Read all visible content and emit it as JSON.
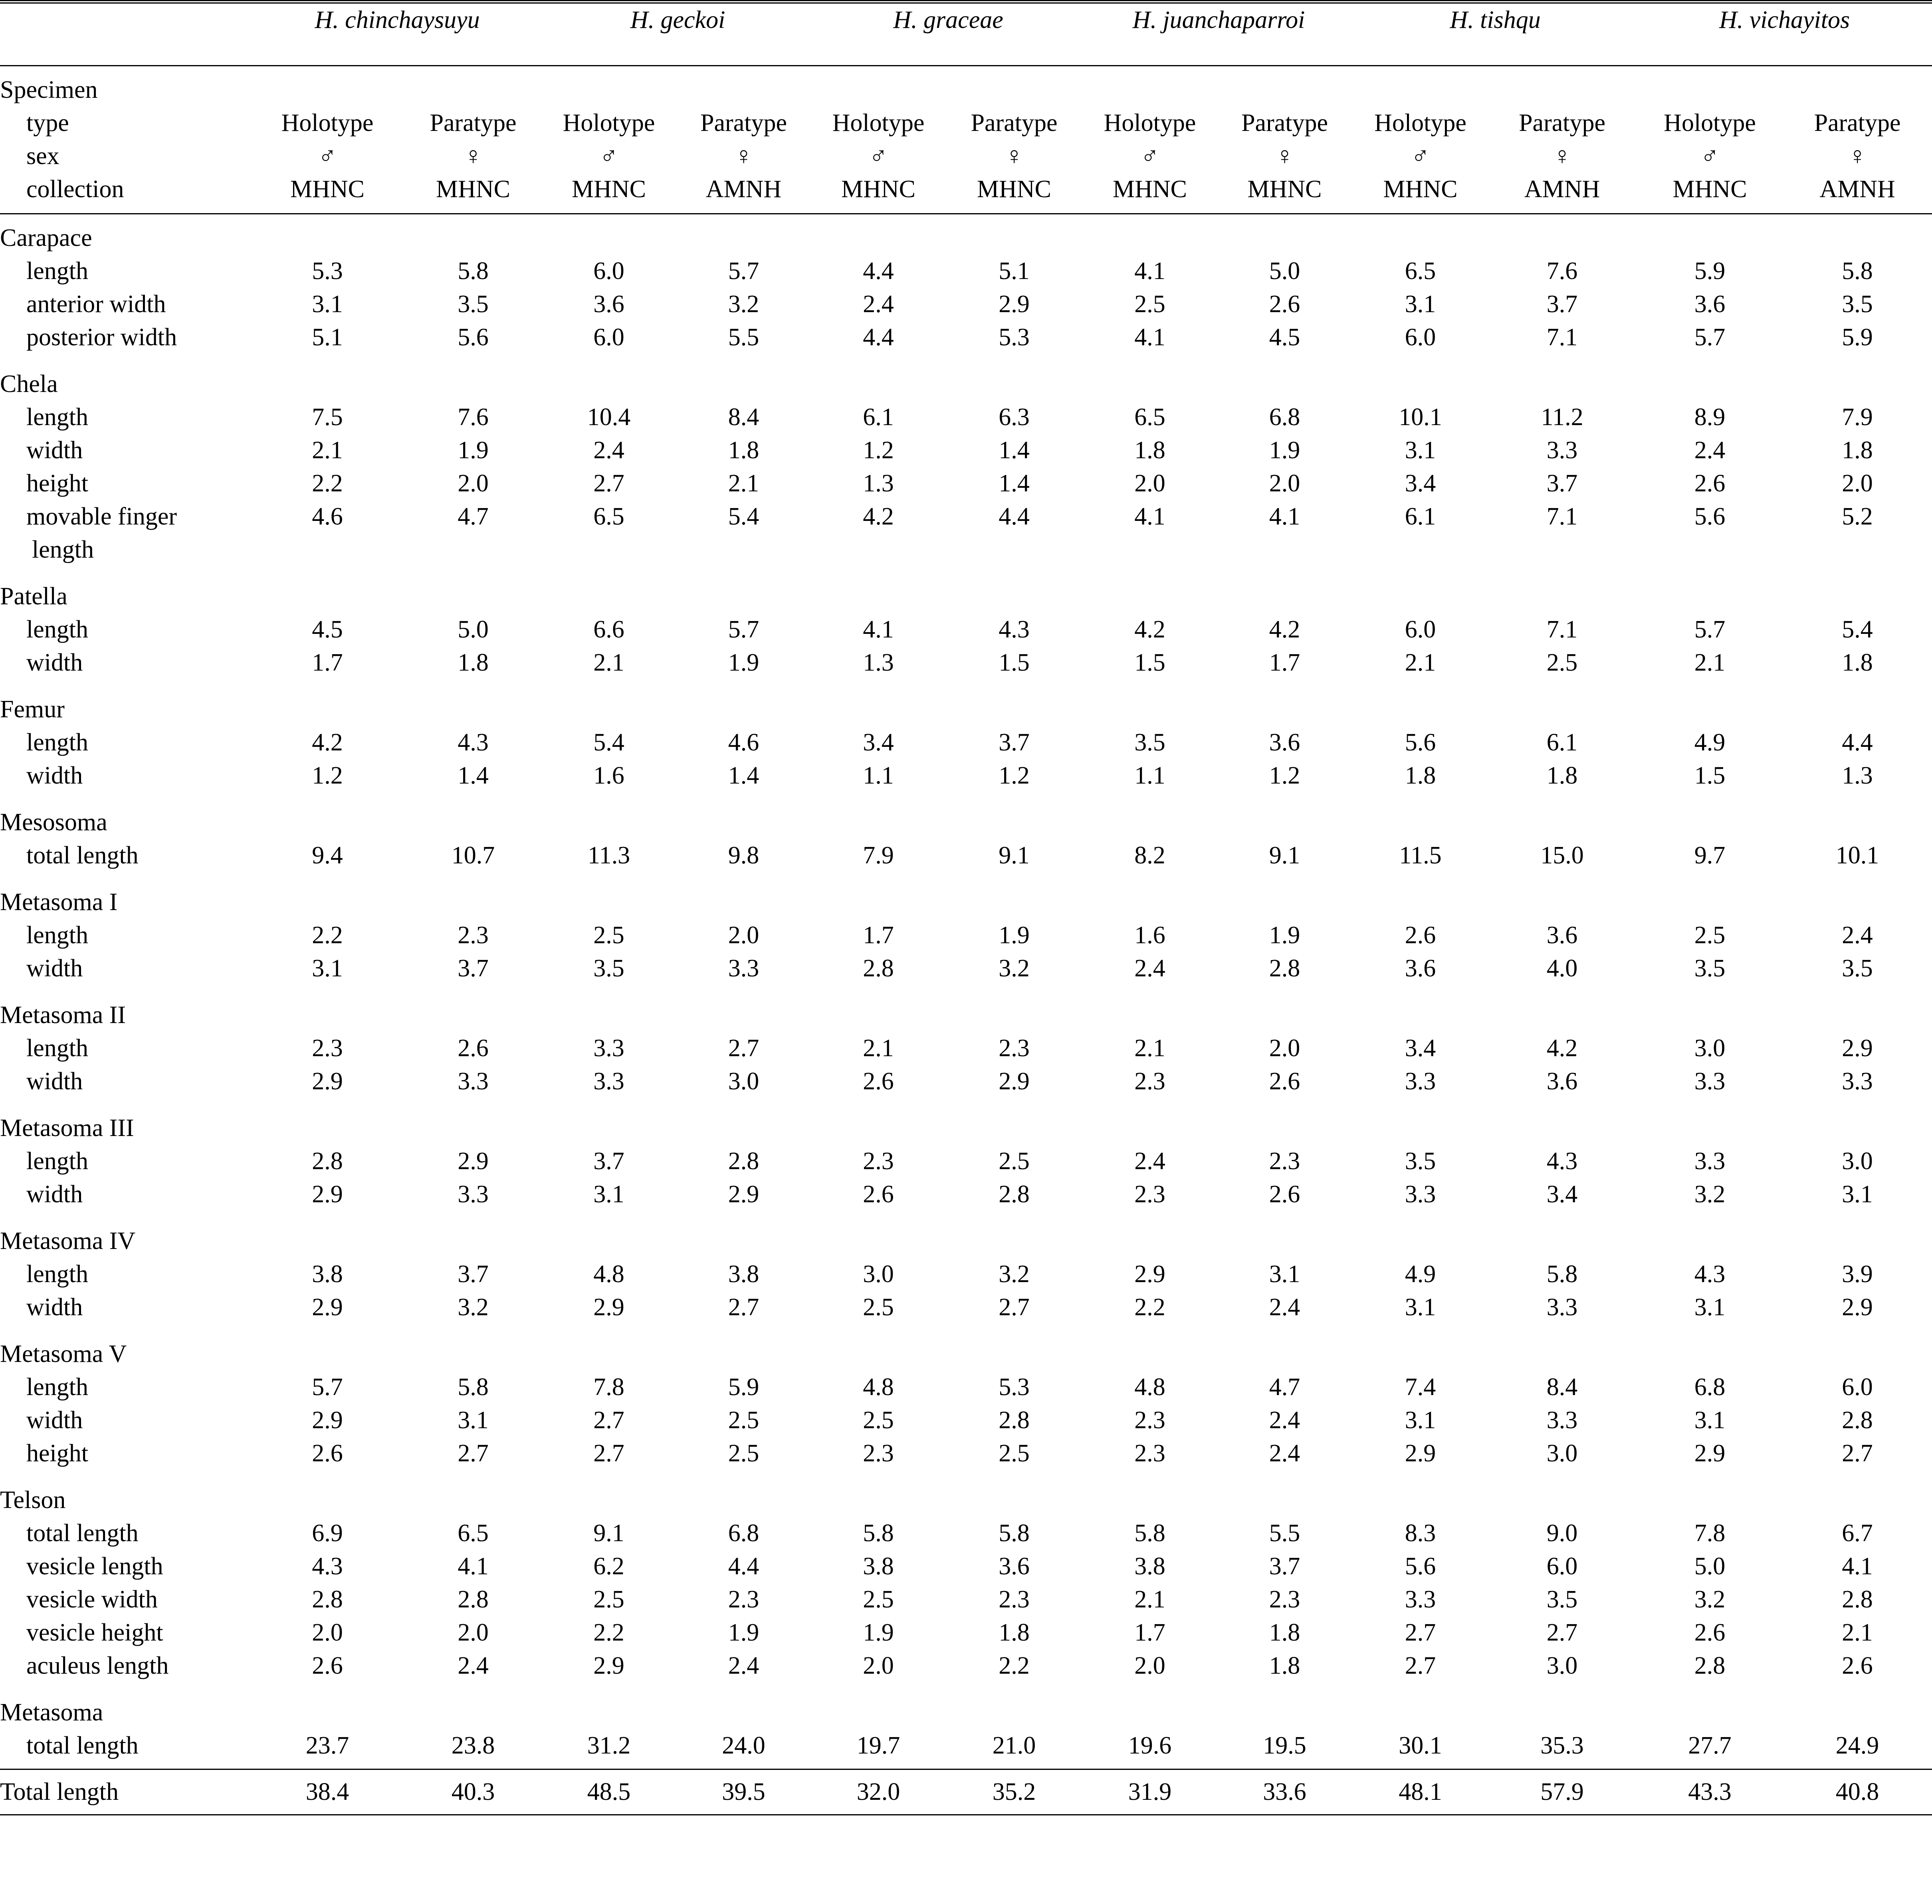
{
  "table": {
    "species": [
      "H. chinchaysuyu",
      "H. geckoi",
      "H. graceae",
      "H. juanchaparroi",
      "H. tishqu",
      "H. vichayitos"
    ],
    "specimen": {
      "title": "Specimen",
      "type_label": "type",
      "sex_label": "sex",
      "collection_label": "collection",
      "types": [
        "Holotype",
        "Paratype",
        "Holotype",
        "Paratype",
        "Holotype",
        "Paratype",
        "Holotype",
        "Paratype",
        "Holotype",
        "Paratype",
        "Holotype",
        "Paratype"
      ],
      "sexes": [
        "♂",
        "♀",
        "♂",
        "♀",
        "♂",
        "♀",
        "♂",
        "♀",
        "♂",
        "♀",
        "♂",
        "♀"
      ],
      "collections": [
        "MHNC",
        "MHNC",
        "MHNC",
        "AMNH",
        "MHNC",
        "MHNC",
        "MHNC",
        "MHNC",
        "MHNC",
        "AMNH",
        "MHNC",
        "AMNH"
      ]
    },
    "groups": [
      {
        "name": "Carapace",
        "rows": [
          {
            "label": "length",
            "values": [
              "5.3",
              "5.8",
              "6.0",
              "5.7",
              "4.4",
              "5.1",
              "4.1",
              "5.0",
              "6.5",
              "7.6",
              "5.9",
              "5.8"
            ]
          },
          {
            "label": "anterior width",
            "values": [
              "3.1",
              "3.5",
              "3.6",
              "3.2",
              "2.4",
              "2.9",
              "2.5",
              "2.6",
              "3.1",
              "3.7",
              "3.6",
              "3.5"
            ]
          },
          {
            "label": "posterior width",
            "values": [
              "5.1",
              "5.6",
              "6.0",
              "5.5",
              "4.4",
              "5.3",
              "4.1",
              "4.5",
              "6.0",
              "7.1",
              "5.7",
              "5.9"
            ]
          }
        ]
      },
      {
        "name": "Chela",
        "rows": [
          {
            "label": "length",
            "values": [
              "7.5",
              "7.6",
              "10.4",
              "8.4",
              "6.1",
              "6.3",
              "6.5",
              "6.8",
              "10.1",
              "11.2",
              "8.9",
              "7.9"
            ]
          },
          {
            "label": "width",
            "values": [
              "2.1",
              "1.9",
              "2.4",
              "1.8",
              "1.2",
              "1.4",
              "1.8",
              "1.9",
              "3.1",
              "3.3",
              "2.4",
              "1.8"
            ]
          },
          {
            "label": "height",
            "values": [
              "2.2",
              "2.0",
              "2.7",
              "2.1",
              "1.3",
              "1.4",
              "2.0",
              "2.0",
              "3.4",
              "3.7",
              "2.6",
              "2.0"
            ]
          },
          {
            "label": "movable finger",
            "label2": "length",
            "values": [
              "4.6",
              "4.7",
              "6.5",
              "5.4",
              "4.2",
              "4.4",
              "4.1",
              "4.1",
              "6.1",
              "7.1",
              "5.6",
              "5.2"
            ]
          }
        ]
      },
      {
        "name": "Patella",
        "rows": [
          {
            "label": "length",
            "values": [
              "4.5",
              "5.0",
              "6.6",
              "5.7",
              "4.1",
              "4.3",
              "4.2",
              "4.2",
              "6.0",
              "7.1",
              "5.7",
              "5.4"
            ]
          },
          {
            "label": "width",
            "values": [
              "1.7",
              "1.8",
              "2.1",
              "1.9",
              "1.3",
              "1.5",
              "1.5",
              "1.7",
              "2.1",
              "2.5",
              "2.1",
              "1.8"
            ]
          }
        ]
      },
      {
        "name": "Femur",
        "rows": [
          {
            "label": "length",
            "values": [
              "4.2",
              "4.3",
              "5.4",
              "4.6",
              "3.4",
              "3.7",
              "3.5",
              "3.6",
              "5.6",
              "6.1",
              "4.9",
              "4.4"
            ]
          },
          {
            "label": "width",
            "values": [
              "1.2",
              "1.4",
              "1.6",
              "1.4",
              "1.1",
              "1.2",
              "1.1",
              "1.2",
              "1.8",
              "1.8",
              "1.5",
              "1.3"
            ]
          }
        ]
      },
      {
        "name": "Mesosoma",
        "rows": [
          {
            "label": "total length",
            "values": [
              "9.4",
              "10.7",
              "11.3",
              "9.8",
              "7.9",
              "9.1",
              "8.2",
              "9.1",
              "11.5",
              "15.0",
              "9.7",
              "10.1"
            ]
          }
        ]
      },
      {
        "name": "Metasoma I",
        "rows": [
          {
            "label": "length",
            "values": [
              "2.2",
              "2.3",
              "2.5",
              "2.0",
              "1.7",
              "1.9",
              "1.6",
              "1.9",
              "2.6",
              "3.6",
              "2.5",
              "2.4"
            ]
          },
          {
            "label": "width",
            "values": [
              "3.1",
              "3.7",
              "3.5",
              "3.3",
              "2.8",
              "3.2",
              "2.4",
              "2.8",
              "3.6",
              "4.0",
              "3.5",
              "3.5"
            ]
          }
        ]
      },
      {
        "name": "Metasoma II",
        "rows": [
          {
            "label": "length",
            "values": [
              "2.3",
              "2.6",
              "3.3",
              "2.7",
              "2.1",
              "2.3",
              "2.1",
              "2.0",
              "3.4",
              "4.2",
              "3.0",
              "2.9"
            ]
          },
          {
            "label": "width",
            "values": [
              "2.9",
              "3.3",
              "3.3",
              "3.0",
              "2.6",
              "2.9",
              "2.3",
              "2.6",
              "3.3",
              "3.6",
              "3.3",
              "3.3"
            ]
          }
        ]
      },
      {
        "name": "Metasoma III",
        "rows": [
          {
            "label": "length",
            "values": [
              "2.8",
              "2.9",
              "3.7",
              "2.8",
              "2.3",
              "2.5",
              "2.4",
              "2.3",
              "3.5",
              "4.3",
              "3.3",
              "3.0"
            ]
          },
          {
            "label": "width",
            "values": [
              "2.9",
              "3.3",
              "3.1",
              "2.9",
              "2.6",
              "2.8",
              "2.3",
              "2.6",
              "3.3",
              "3.4",
              "3.2",
              "3.1"
            ]
          }
        ]
      },
      {
        "name": "Metasoma IV",
        "rows": [
          {
            "label": "length",
            "values": [
              "3.8",
              "3.7",
              "4.8",
              "3.8",
              "3.0",
              "3.2",
              "2.9",
              "3.1",
              "4.9",
              "5.8",
              "4.3",
              "3.9"
            ]
          },
          {
            "label": "width",
            "values": [
              "2.9",
              "3.2",
              "2.9",
              "2.7",
              "2.5",
              "2.7",
              "2.2",
              "2.4",
              "3.1",
              "3.3",
              "3.1",
              "2.9"
            ]
          }
        ]
      },
      {
        "name": "Metasoma V",
        "rows": [
          {
            "label": "length",
            "values": [
              "5.7",
              "5.8",
              "7.8",
              "5.9",
              "4.8",
              "5.3",
              "4.8",
              "4.7",
              "7.4",
              "8.4",
              "6.8",
              "6.0"
            ]
          },
          {
            "label": "width",
            "values": [
              "2.9",
              "3.1",
              "2.7",
              "2.5",
              "2.5",
              "2.8",
              "2.3",
              "2.4",
              "3.1",
              "3.3",
              "3.1",
              "2.8"
            ]
          },
          {
            "label": "height",
            "values": [
              "2.6",
              "2.7",
              "2.7",
              "2.5",
              "2.3",
              "2.5",
              "2.3",
              "2.4",
              "2.9",
              "3.0",
              "2.9",
              "2.7"
            ]
          }
        ]
      },
      {
        "name": "Telson",
        "rows": [
          {
            "label": "total length",
            "values": [
              "6.9",
              "6.5",
              "9.1",
              "6.8",
              "5.8",
              "5.8",
              "5.8",
              "5.5",
              "8.3",
              "9.0",
              "7.8",
              "6.7"
            ]
          },
          {
            "label": "vesicle length",
            "values": [
              "4.3",
              "4.1",
              "6.2",
              "4.4",
              "3.8",
              "3.6",
              "3.8",
              "3.7",
              "5.6",
              "6.0",
              "5.0",
              "4.1"
            ]
          },
          {
            "label": "vesicle width",
            "values": [
              "2.8",
              "2.8",
              "2.5",
              "2.3",
              "2.5",
              "2.3",
              "2.1",
              "2.3",
              "3.3",
              "3.5",
              "3.2",
              "2.8"
            ]
          },
          {
            "label": "vesicle height",
            "values": [
              "2.0",
              "2.0",
              "2.2",
              "1.9",
              "1.9",
              "1.8",
              "1.7",
              "1.8",
              "2.7",
              "2.7",
              "2.6",
              "2.1"
            ]
          },
          {
            "label": "aculeus length",
            "values": [
              "2.6",
              "2.4",
              "2.9",
              "2.4",
              "2.0",
              "2.2",
              "2.0",
              "1.8",
              "2.7",
              "3.0",
              "2.8",
              "2.6"
            ]
          }
        ]
      },
      {
        "name": "Metasoma",
        "rows": [
          {
            "label": "total length",
            "values": [
              "23.7",
              "23.8",
              "31.2",
              "24.0",
              "19.7",
              "21.0",
              "19.6",
              "19.5",
              "30.1",
              "35.3",
              "27.7",
              "24.9"
            ]
          }
        ]
      }
    ],
    "total": {
      "label": "Total length",
      "values": [
        "38.4",
        "40.3",
        "48.5",
        "39.5",
        "32.0",
        "35.2",
        "31.9",
        "33.6",
        "48.1",
        "57.9",
        "43.3",
        "40.8"
      ]
    }
  }
}
